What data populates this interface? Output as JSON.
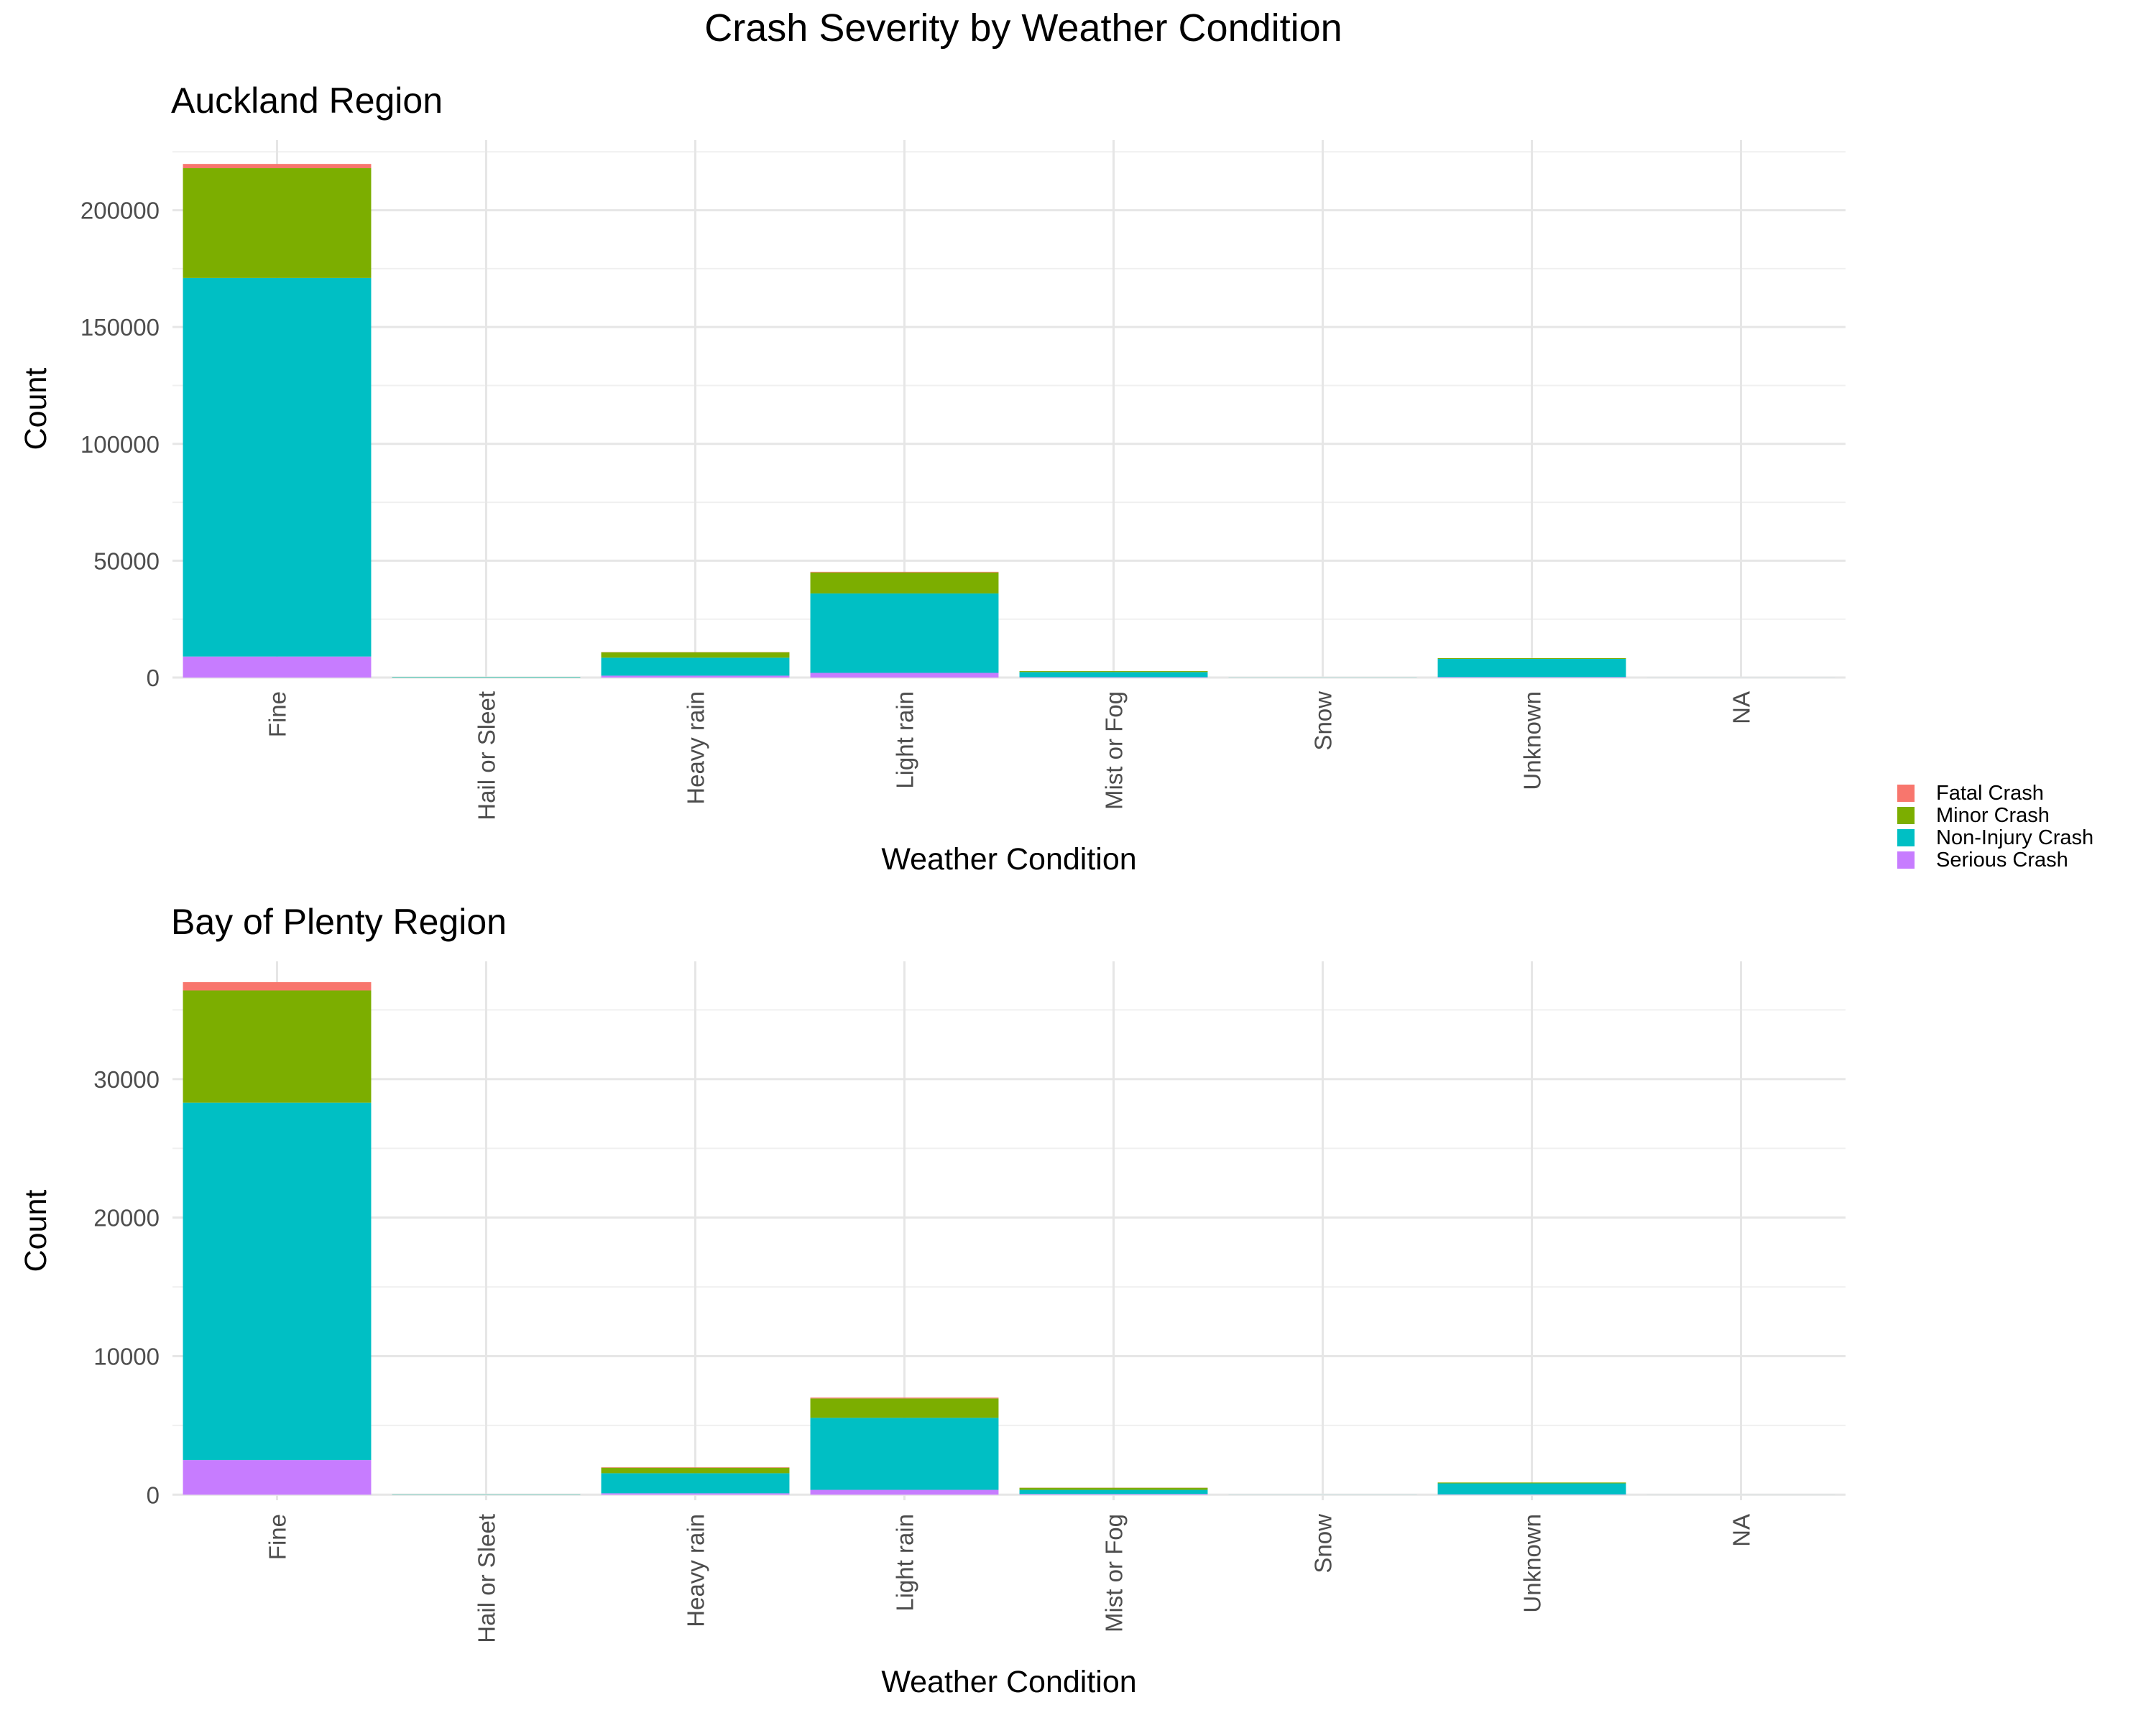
{
  "title": "Crash Severity by Weather Condition",
  "colors": {
    "Fatal Crash": "#F8766D",
    "Minor Crash": "#7CAE00",
    "Non-Injury Crash": "#00BFC4",
    "Serious Crash": "#C77CFF"
  },
  "legend": {
    "position": "right",
    "entries": [
      "Fatal Crash",
      "Minor Crash",
      "Non-Injury Crash",
      "Serious Crash"
    ]
  },
  "chart_data": [
    {
      "type": "bar",
      "stacked": true,
      "title": "Auckland Region",
      "xlabel": "Weather Condition",
      "ylabel": "Count",
      "categories": [
        "Fine",
        "Hail or Sleet",
        "Heavy rain",
        "Light rain",
        "Mist or Fog",
        "Snow",
        "Unknown",
        "NA"
      ],
      "ylim": [
        0,
        230000
      ],
      "yticks": [
        0,
        50000,
        100000,
        150000,
        200000
      ],
      "grid": true,
      "series": [
        {
          "name": "Serious Crash",
          "values": [
            9000,
            0,
            800,
            2000,
            150,
            0,
            200,
            0
          ]
        },
        {
          "name": "Non-Injury Crash",
          "values": [
            162000,
            200,
            7700,
            34000,
            2200,
            50,
            7800,
            10
          ]
        },
        {
          "name": "Minor Crash",
          "values": [
            47000,
            40,
            2300,
            9000,
            400,
            10,
            300,
            0
          ]
        },
        {
          "name": "Fatal Crash",
          "values": [
            1800,
            0,
            100,
            250,
            20,
            0,
            10,
            0
          ]
        }
      ]
    },
    {
      "type": "bar",
      "stacked": true,
      "title": "Bay of Plenty Region",
      "xlabel": "Weather Condition",
      "ylabel": "Count",
      "categories": [
        "Fine",
        "Hail or Sleet",
        "Heavy rain",
        "Light rain",
        "Mist or Fog",
        "Snow",
        "Unknown",
        "NA"
      ],
      "ylim": [
        -400,
        38500
      ],
      "yticks": [
        0,
        10000,
        20000,
        30000
      ],
      "grid": true,
      "series": [
        {
          "name": "Serious Crash",
          "values": [
            2500,
            0,
            100,
            350,
            50,
            0,
            20,
            0
          ]
        },
        {
          "name": "Non-Injury Crash",
          "values": [
            25800,
            20,
            1450,
            5200,
            300,
            5,
            800,
            2
          ]
        },
        {
          "name": "Minor Crash",
          "values": [
            8100,
            5,
            400,
            1400,
            150,
            0,
            60,
            0
          ]
        },
        {
          "name": "Fatal Crash",
          "values": [
            600,
            0,
            30,
            60,
            10,
            0,
            0,
            0
          ]
        }
      ]
    }
  ]
}
